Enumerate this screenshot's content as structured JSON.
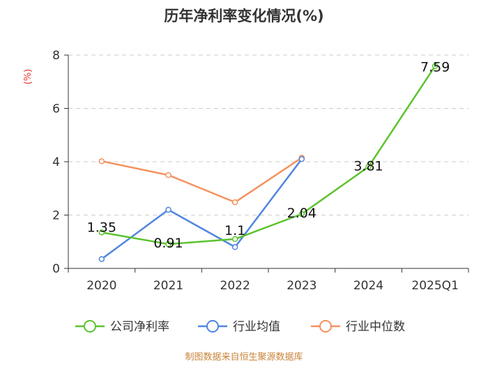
{
  "chart_data": {
    "type": "line",
    "title": "历年净利率变化情况(%)",
    "ylabel": "(%)",
    "categories": [
      "2020",
      "2021",
      "2022",
      "2023",
      "2024",
      "2025Q1"
    ],
    "ylim": [
      0,
      8
    ],
    "yticks": [
      0,
      2,
      4,
      6,
      8
    ],
    "series": [
      {
        "name": "公司净利率",
        "color": "#5bc32e",
        "values": [
          1.35,
          0.91,
          1.1,
          2.04,
          3.81,
          7.59
        ],
        "labels": [
          "1.35",
          "0.91",
          "1.1",
          "2.04",
          "3.81",
          "7.59"
        ]
      },
      {
        "name": "行业均值",
        "color": "#4f86e0",
        "values": [
          0.35,
          2.2,
          0.8,
          4.1,
          null,
          null
        ]
      },
      {
        "name": "行业中位数",
        "color": "#f5915e",
        "values": [
          4.02,
          3.5,
          2.48,
          4.15,
          null,
          null
        ]
      }
    ],
    "source": "制图数据来自恒生聚源数据库"
  }
}
